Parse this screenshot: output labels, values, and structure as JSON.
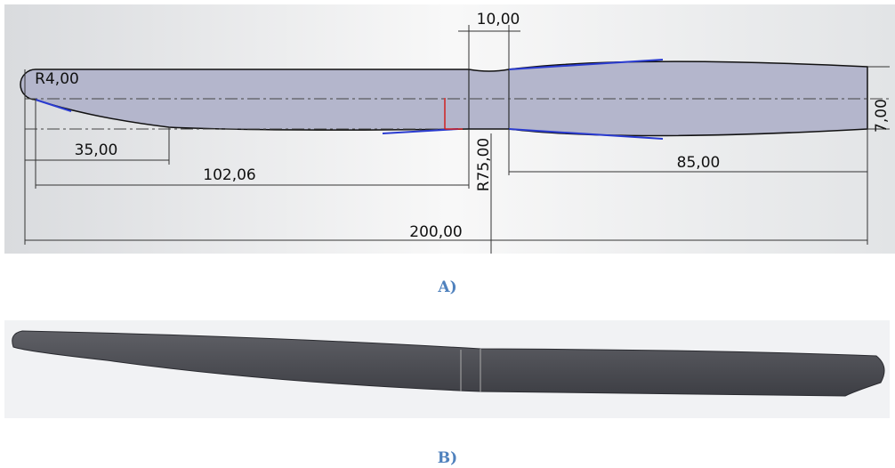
{
  "panel_a": {
    "dimensions": {
      "radius_tip": "R4,00",
      "length_35": "35,00",
      "length_102": "102,06",
      "neck_width": "10,00",
      "radius_75": "R75,00",
      "length_85": "85,00",
      "total_length": "200,00",
      "thickness": "7,00"
    },
    "caption": "A)"
  },
  "panel_b": {
    "caption": "B)"
  }
}
